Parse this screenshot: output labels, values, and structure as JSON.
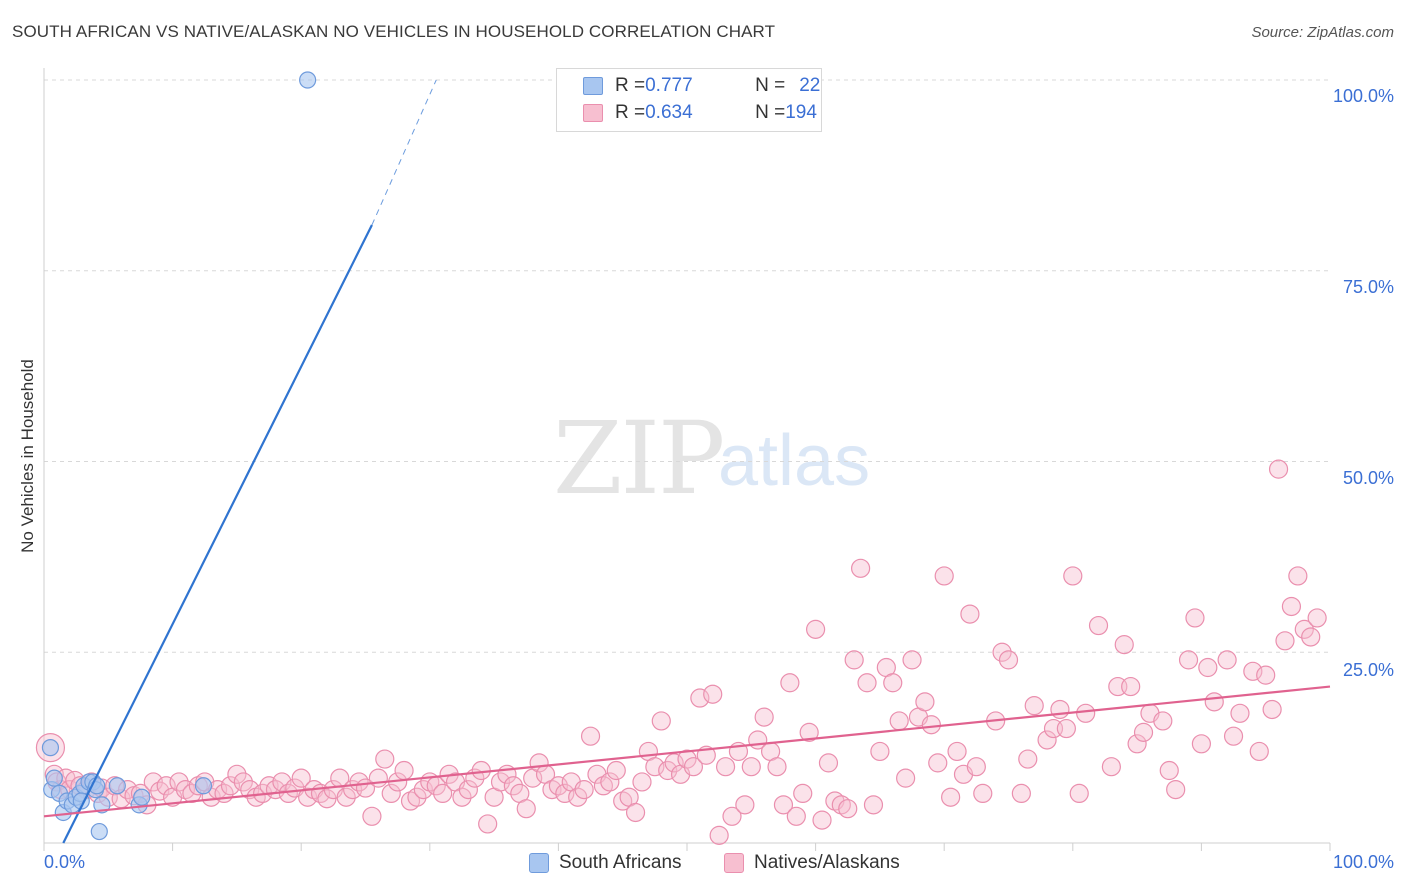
{
  "header": {
    "title": "SOUTH AFRICAN VS NATIVE/ALASKAN NO VEHICLES IN HOUSEHOLD CORRELATION CHART",
    "source": "Source: ZipAtlas.com"
  },
  "watermark": {
    "zip": "ZIP",
    "atlas": "atlas"
  },
  "legend_top": {
    "rows": [
      {
        "r_label": "R = ",
        "r_value": "0.777",
        "n_label": "N = ",
        "n_value": "22"
      },
      {
        "r_label": "R = ",
        "r_value": "0.634",
        "n_label": "N = ",
        "n_value": "194"
      }
    ]
  },
  "legend_bottom": {
    "items": [
      "South Africans",
      "Natives/Alaskans"
    ]
  },
  "axes": {
    "y_title": "No Vehicles in Household",
    "y_ticks": [
      "100.0%",
      "75.0%",
      "50.0%",
      "25.0%"
    ],
    "x_ticks": [
      "0.0%",
      "100.0%"
    ]
  },
  "colors": {
    "blue_fill": "#a8c6f0",
    "blue_stroke": "#6f9bdc",
    "blue_line": "#2f74d0",
    "pink_fill": "#f7bfd0",
    "pink_stroke": "#ea8fae",
    "pink_line": "#e0628f",
    "accent_text": "#3b6fd4",
    "grid": "#d8d8d8"
  },
  "chart_data": {
    "type": "scatter",
    "xlim": [
      0,
      100
    ],
    "ylim": [
      0,
      100
    ],
    "grid": true,
    "legend_position": "top-center",
    "series": [
      {
        "name": "South Africans",
        "color": "#a8c6f0",
        "points": [
          [
            0.5,
            12.5
          ],
          [
            0.6,
            7
          ],
          [
            0.8,
            8.5
          ],
          [
            1.2,
            6.5
          ],
          [
            1.5,
            4
          ],
          [
            1.8,
            5.5
          ],
          [
            2.2,
            5
          ],
          [
            2.5,
            6
          ],
          [
            2.8,
            6.5
          ],
          [
            3.1,
            7.5
          ],
          [
            3.5,
            8
          ],
          [
            3.8,
            8
          ],
          [
            4,
            7
          ],
          [
            4.3,
            1.5
          ],
          [
            4.5,
            5
          ],
          [
            5.7,
            7.5
          ],
          [
            7.4,
            5
          ],
          [
            7.6,
            6
          ],
          [
            12.4,
            7.5
          ],
          [
            20.5,
            100
          ],
          [
            2.9,
            5.5
          ],
          [
            4.1,
            7.5
          ]
        ],
        "trend": {
          "x": [
            1.5,
            25.5
          ],
          "y": [
            0,
            81
          ],
          "dashed_to": [
            30.5,
            100
          ]
        }
      },
      {
        "name": "Natives/Alaskans",
        "color": "#f7bfd0",
        "points": [
          [
            0.5,
            12.5
          ],
          [
            0.8,
            9
          ],
          [
            1,
            8
          ],
          [
            1.3,
            7
          ],
          [
            1.7,
            8.5
          ],
          [
            2,
            7
          ],
          [
            2.4,
            8.2
          ],
          [
            2.8,
            7.5
          ],
          [
            3.3,
            7
          ],
          [
            3.7,
            8
          ],
          [
            4.2,
            6.5
          ],
          [
            4.5,
            7.2
          ],
          [
            5,
            6
          ],
          [
            5.5,
            7.5
          ],
          [
            6,
            5.8
          ],
          [
            6.5,
            7
          ],
          [
            7,
            6.2
          ],
          [
            7.5,
            6.5
          ],
          [
            8,
            5
          ],
          [
            8.5,
            8
          ],
          [
            9,
            6.8
          ],
          [
            9.5,
            7.5
          ],
          [
            10,
            6
          ],
          [
            10.5,
            8
          ],
          [
            11,
            7
          ],
          [
            11.5,
            6.5
          ],
          [
            12,
            7.5
          ],
          [
            12.5,
            8
          ],
          [
            13,
            6
          ],
          [
            13.5,
            7
          ],
          [
            14,
            6.5
          ],
          [
            14.5,
            7.5
          ],
          [
            15,
            9
          ],
          [
            15.5,
            8
          ],
          [
            16,
            7
          ],
          [
            16.5,
            6
          ],
          [
            17,
            6.5
          ],
          [
            17.5,
            7.5
          ],
          [
            18,
            7
          ],
          [
            18.5,
            8
          ],
          [
            19,
            6.5
          ],
          [
            19.5,
            7.2
          ],
          [
            20,
            8.5
          ],
          [
            20.5,
            6
          ],
          [
            21,
            7
          ],
          [
            21.5,
            6.5
          ],
          [
            22,
            5.8
          ],
          [
            22.5,
            7
          ],
          [
            23,
            8.5
          ],
          [
            23.5,
            6
          ],
          [
            24,
            7
          ],
          [
            24.5,
            8
          ],
          [
            25,
            7.2
          ],
          [
            25.5,
            3.5
          ],
          [
            26,
            8.5
          ],
          [
            26.5,
            11
          ],
          [
            27,
            6.5
          ],
          [
            27.5,
            8
          ],
          [
            28,
            9.5
          ],
          [
            28.5,
            5.5
          ],
          [
            29,
            6
          ],
          [
            29.5,
            7
          ],
          [
            30,
            8
          ],
          [
            30.5,
            7.5
          ],
          [
            31,
            6.5
          ],
          [
            31.5,
            9
          ],
          [
            32,
            8
          ],
          [
            32.5,
            6
          ],
          [
            33,
            7
          ],
          [
            33.5,
            8.5
          ],
          [
            34,
            9.5
          ],
          [
            34.5,
            2.5
          ],
          [
            35,
            6
          ],
          [
            35.5,
            8
          ],
          [
            36,
            9
          ],
          [
            36.5,
            7.5
          ],
          [
            37,
            6.5
          ],
          [
            37.5,
            4.5
          ],
          [
            38,
            8.5
          ],
          [
            38.5,
            10.5
          ],
          [
            39,
            9
          ],
          [
            39.5,
            7
          ],
          [
            40,
            7.5
          ],
          [
            40.5,
            6.5
          ],
          [
            41,
            8
          ],
          [
            41.5,
            6
          ],
          [
            42,
            7
          ],
          [
            42.5,
            14
          ],
          [
            43,
            9
          ],
          [
            43.5,
            7.5
          ],
          [
            44,
            8
          ],
          [
            44.5,
            9.5
          ],
          [
            45,
            5.5
          ],
          [
            45.5,
            6
          ],
          [
            46,
            4
          ],
          [
            46.5,
            8
          ],
          [
            47,
            12
          ],
          [
            47.5,
            10
          ],
          [
            48,
            16
          ],
          [
            48.5,
            9.5
          ],
          [
            49,
            10.5
          ],
          [
            49.5,
            9
          ],
          [
            50,
            11
          ],
          [
            50.5,
            10
          ],
          [
            51,
            19
          ],
          [
            51.5,
            11.5
          ],
          [
            52,
            19.5
          ],
          [
            52.5,
            1
          ],
          [
            53,
            10
          ],
          [
            53.5,
            3.5
          ],
          [
            54,
            12
          ],
          [
            54.5,
            5
          ],
          [
            55,
            10
          ],
          [
            55.5,
            13.5
          ],
          [
            56,
            16.5
          ],
          [
            56.5,
            12
          ],
          [
            57,
            10
          ],
          [
            57.5,
            5
          ],
          [
            58,
            21
          ],
          [
            58.5,
            3.5
          ],
          [
            59,
            6.5
          ],
          [
            59.5,
            14.5
          ],
          [
            60,
            28
          ],
          [
            60.5,
            3
          ],
          [
            61,
            10.5
          ],
          [
            61.5,
            5.5
          ],
          [
            62,
            5
          ],
          [
            62.5,
            4.5
          ],
          [
            63,
            24
          ],
          [
            63.5,
            36
          ],
          [
            64,
            21
          ],
          [
            64.5,
            5
          ],
          [
            65,
            12
          ],
          [
            65.5,
            23
          ],
          [
            66,
            21
          ],
          [
            66.5,
            16
          ],
          [
            67,
            8.5
          ],
          [
            67.5,
            24
          ],
          [
            68,
            16.5
          ],
          [
            68.5,
            18.5
          ],
          [
            69,
            15.5
          ],
          [
            69.5,
            10.5
          ],
          [
            70,
            35
          ],
          [
            70.5,
            6
          ],
          [
            71,
            12
          ],
          [
            71.5,
            9
          ],
          [
            72,
            30
          ],
          [
            72.5,
            10
          ],
          [
            73,
            6.5
          ],
          [
            74,
            16
          ],
          [
            74.5,
            25
          ],
          [
            75,
            24
          ],
          [
            76,
            6.5
          ],
          [
            76.5,
            11
          ],
          [
            77,
            18
          ],
          [
            78,
            13.5
          ],
          [
            78.5,
            15
          ],
          [
            79,
            17.5
          ],
          [
            79.5,
            15
          ],
          [
            80,
            35
          ],
          [
            80.5,
            6.5
          ],
          [
            81,
            17
          ],
          [
            82,
            28.5
          ],
          [
            83,
            10
          ],
          [
            83.5,
            20.5
          ],
          [
            84,
            26
          ],
          [
            84.5,
            20.5
          ],
          [
            85,
            13
          ],
          [
            85.5,
            14.5
          ],
          [
            86,
            17
          ],
          [
            87,
            16
          ],
          [
            87.5,
            9.5
          ],
          [
            88,
            7
          ],
          [
            89,
            24
          ],
          [
            89.5,
            29.5
          ],
          [
            90,
            13
          ],
          [
            90.5,
            23
          ],
          [
            91,
            18.5
          ],
          [
            92,
            24
          ],
          [
            92.5,
            14
          ],
          [
            93,
            17
          ],
          [
            94,
            22.5
          ],
          [
            94.5,
            12
          ],
          [
            95,
            22
          ],
          [
            95.5,
            17.5
          ],
          [
            96,
            49
          ],
          [
            96.5,
            26.5
          ],
          [
            97,
            31
          ],
          [
            97.5,
            35
          ],
          [
            98,
            28
          ],
          [
            98.5,
            27
          ],
          [
            99,
            29.5
          ]
        ],
        "trend": {
          "x": [
            0,
            100
          ],
          "y": [
            3.5,
            20.5
          ]
        }
      }
    ]
  }
}
